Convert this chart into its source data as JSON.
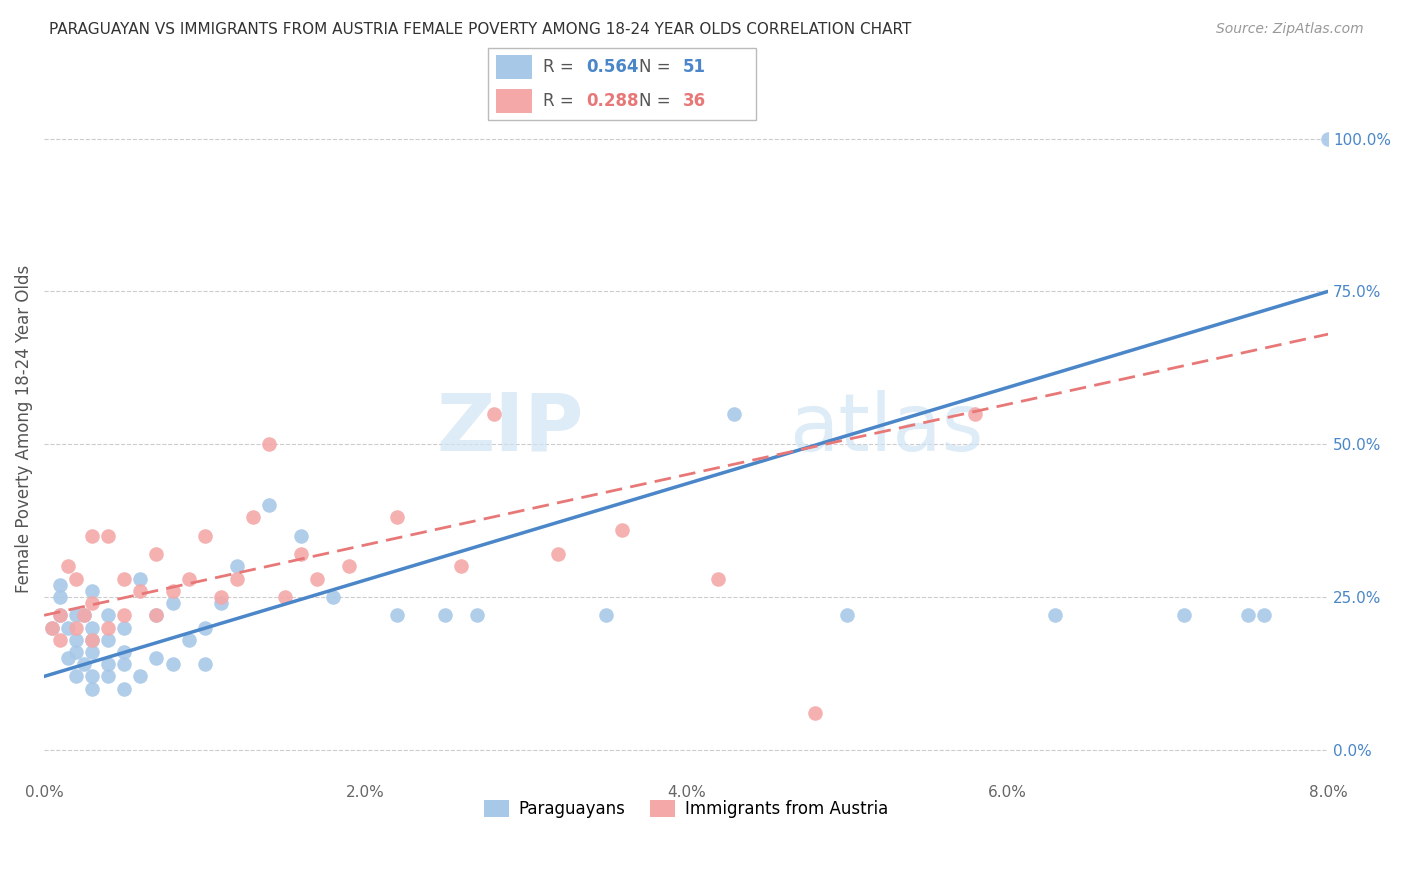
{
  "title": "PARAGUAYAN VS IMMIGRANTS FROM AUSTRIA FEMALE POVERTY AMONG 18-24 YEAR OLDS CORRELATION CHART",
  "source": "Source: ZipAtlas.com",
  "ylabel": "Female Poverty Among 18-24 Year Olds",
  "xlim": [
    0.0,
    0.08
  ],
  "ylim": [
    -0.05,
    1.1
  ],
  "ytick_labels": [
    "0.0%",
    "25.0%",
    "50.0%",
    "75.0%",
    "100.0%"
  ],
  "ytick_vals": [
    0.0,
    0.25,
    0.5,
    0.75,
    1.0
  ],
  "xtick_labels": [
    "0.0%",
    "2.0%",
    "4.0%",
    "6.0%",
    "8.0%"
  ],
  "xtick_vals": [
    0.0,
    0.02,
    0.04,
    0.06,
    0.08
  ],
  "blue_R": 0.564,
  "blue_N": 51,
  "pink_R": 0.288,
  "pink_N": 36,
  "blue_color": "#a8c8e8",
  "pink_color": "#f4a8a8",
  "blue_line_color": "#4a86c8",
  "pink_line_color": "#e87878",
  "watermark_color": "#d0e4f4",
  "blue_x": [
    0.0005,
    0.001,
    0.001,
    0.001,
    0.0015,
    0.0015,
    0.002,
    0.002,
    0.002,
    0.002,
    0.0025,
    0.0025,
    0.003,
    0.003,
    0.003,
    0.003,
    0.003,
    0.003,
    0.004,
    0.004,
    0.004,
    0.004,
    0.005,
    0.005,
    0.005,
    0.005,
    0.006,
    0.006,
    0.007,
    0.007,
    0.008,
    0.008,
    0.009,
    0.01,
    0.01,
    0.011,
    0.012,
    0.014,
    0.016,
    0.018,
    0.022,
    0.025,
    0.027,
    0.035,
    0.043,
    0.05,
    0.063,
    0.071,
    0.075,
    0.076,
    0.08
  ],
  "blue_y": [
    0.2,
    0.22,
    0.25,
    0.27,
    0.15,
    0.2,
    0.12,
    0.16,
    0.18,
    0.22,
    0.14,
    0.22,
    0.1,
    0.12,
    0.16,
    0.18,
    0.2,
    0.26,
    0.12,
    0.14,
    0.18,
    0.22,
    0.1,
    0.14,
    0.16,
    0.2,
    0.12,
    0.28,
    0.15,
    0.22,
    0.14,
    0.24,
    0.18,
    0.14,
    0.2,
    0.24,
    0.3,
    0.4,
    0.35,
    0.25,
    0.22,
    0.22,
    0.22,
    0.22,
    0.55,
    0.22,
    0.22,
    0.22,
    0.22,
    0.22,
    1.0
  ],
  "pink_x": [
    0.0005,
    0.001,
    0.001,
    0.0015,
    0.002,
    0.002,
    0.0025,
    0.003,
    0.003,
    0.003,
    0.004,
    0.004,
    0.005,
    0.005,
    0.006,
    0.007,
    0.007,
    0.008,
    0.009,
    0.01,
    0.011,
    0.012,
    0.013,
    0.014,
    0.015,
    0.016,
    0.017,
    0.019,
    0.022,
    0.026,
    0.028,
    0.032,
    0.036,
    0.042,
    0.048,
    0.058
  ],
  "pink_y": [
    0.2,
    0.18,
    0.22,
    0.3,
    0.2,
    0.28,
    0.22,
    0.18,
    0.24,
    0.35,
    0.2,
    0.35,
    0.22,
    0.28,
    0.26,
    0.22,
    0.32,
    0.26,
    0.28,
    0.35,
    0.25,
    0.28,
    0.38,
    0.5,
    0.25,
    0.32,
    0.28,
    0.3,
    0.38,
    0.3,
    0.55,
    0.32,
    0.36,
    0.28,
    0.06,
    0.55
  ],
  "blue_line_x0": 0.0,
  "blue_line_y0": 0.12,
  "blue_line_x1": 0.08,
  "blue_line_y1": 0.75,
  "pink_line_x0": 0.0,
  "pink_line_y0": 0.22,
  "pink_line_x1": 0.08,
  "pink_line_y1": 0.68
}
